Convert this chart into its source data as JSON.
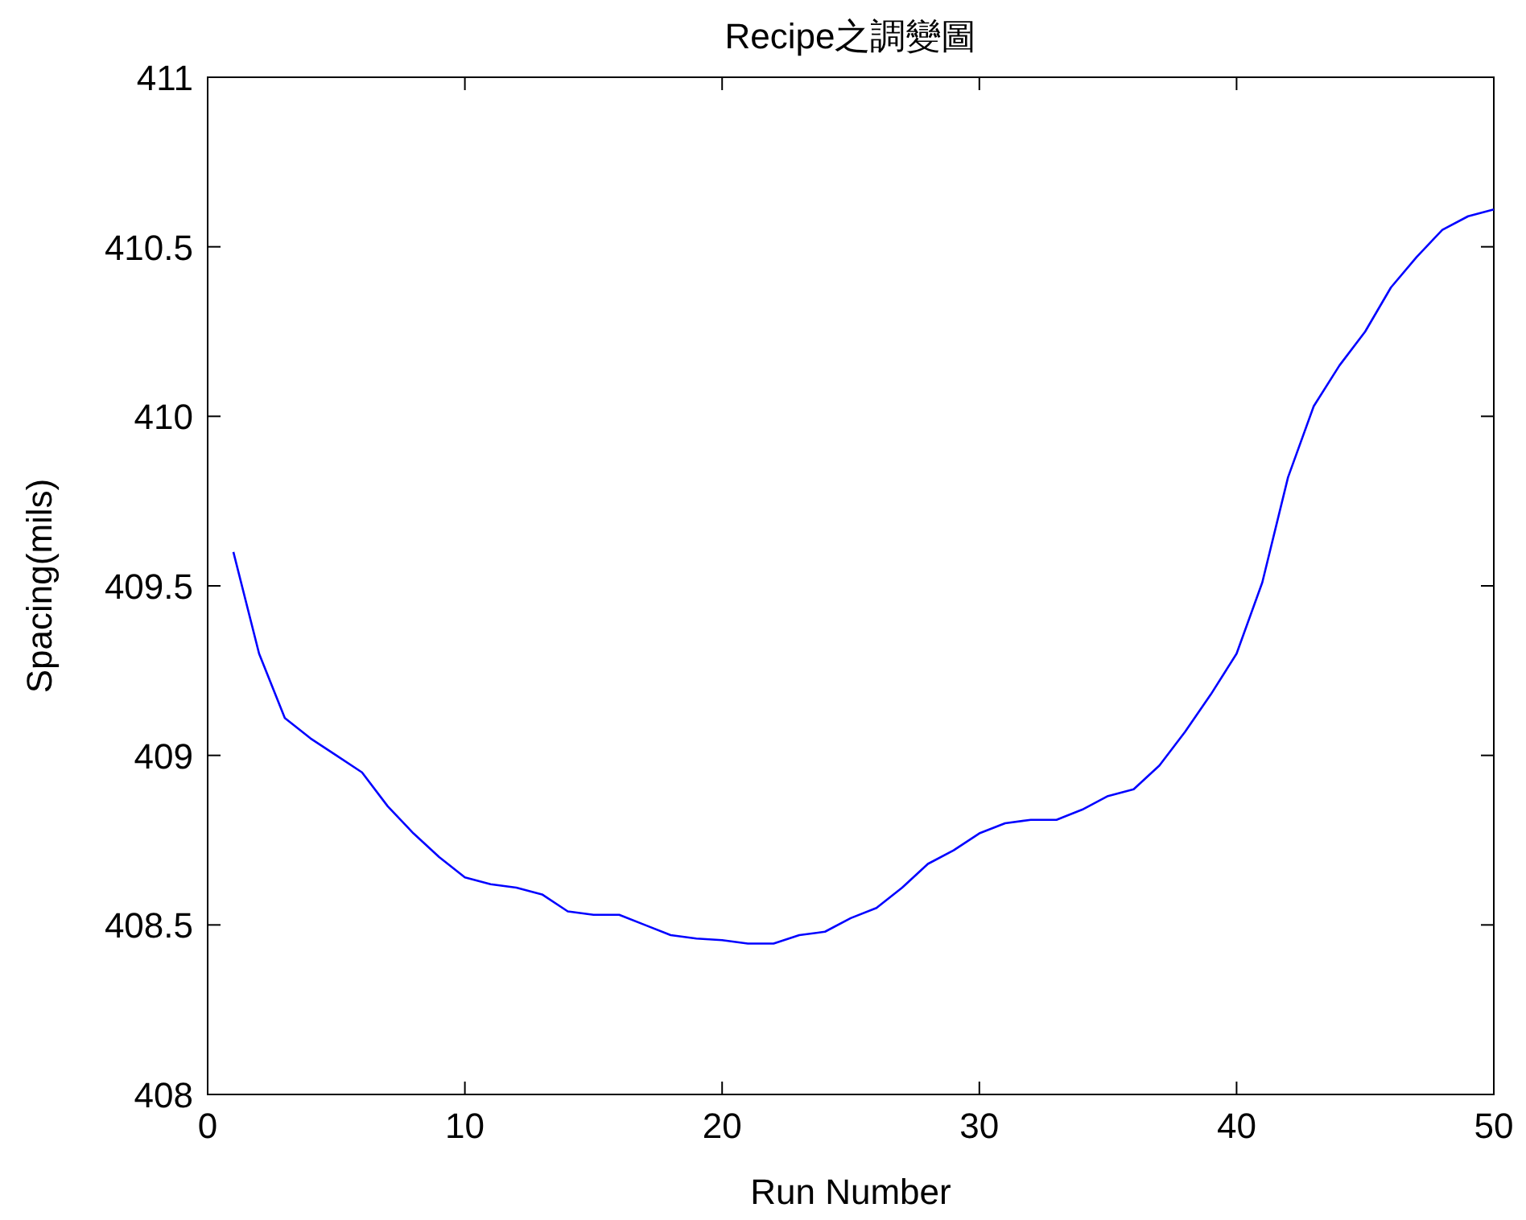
{
  "chart_data": {
    "type": "line",
    "title": "Recipe之調變圖",
    "xlabel": "Run Number",
    "ylabel": "Spacing(mils)",
    "x": [
      1,
      2,
      3,
      4,
      5,
      6,
      7,
      8,
      9,
      10,
      11,
      12,
      13,
      14,
      15,
      16,
      17,
      18,
      19,
      20,
      21,
      22,
      23,
      24,
      25,
      26,
      27,
      28,
      29,
      30,
      31,
      32,
      33,
      34,
      35,
      36,
      37,
      38,
      39,
      40,
      41,
      42,
      43,
      44,
      45,
      46,
      47,
      48,
      49,
      50
    ],
    "series": [
      {
        "color": "#0000ff",
        "values": [
          409.6,
          409.3,
          409.11,
          409.05,
          409.0,
          408.95,
          408.85,
          408.77,
          408.7,
          408.64,
          408.62,
          408.61,
          408.59,
          408.54,
          408.53,
          408.53,
          408.5,
          408.47,
          408.46,
          408.455,
          408.445,
          408.445,
          408.47,
          408.48,
          408.52,
          408.55,
          408.61,
          408.68,
          408.72,
          408.77,
          408.8,
          408.81,
          408.81,
          408.84,
          408.88,
          408.9,
          408.97,
          409.07,
          409.18,
          409.3,
          409.51,
          409.82,
          410.03,
          410.15,
          410.25,
          410.38,
          410.47,
          410.55,
          410.59,
          410.61
        ]
      }
    ],
    "xlim": [
      0,
      50
    ],
    "xticks": [
      0,
      10,
      20,
      30,
      40,
      50
    ],
    "ylim": [
      408,
      411
    ],
    "yticks": [
      408,
      408.5,
      409,
      409.5,
      410,
      410.5,
      411
    ],
    "grid": false,
    "marker": "none",
    "line_style": "solid"
  }
}
